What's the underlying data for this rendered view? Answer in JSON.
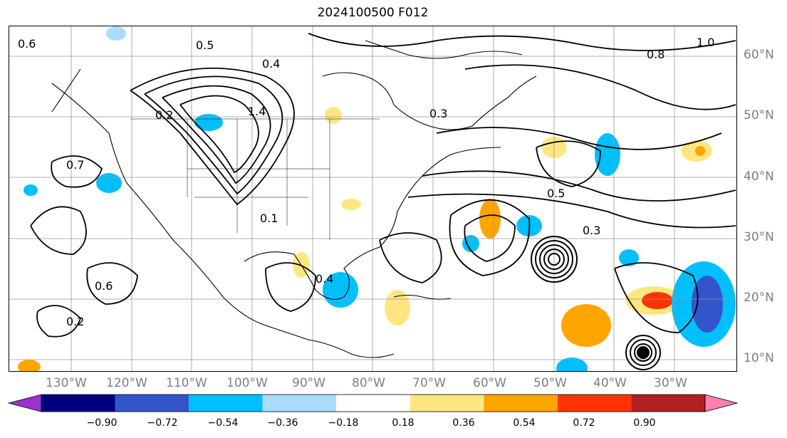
{
  "title": "2024100500 F012",
  "lat_labels": [
    "60°N",
    "50°N",
    "40°N",
    "30°N",
    "20°N",
    "10°N"
  ],
  "lon_labels": [
    "130°W",
    "120°W",
    "110°W",
    "100°W",
    "90°W",
    "80°W",
    "70°W",
    "60°W",
    "50°W",
    "40°W",
    "30°W"
  ],
  "colorbar": {
    "ticks": [
      "−0.90",
      "−0.72",
      "−0.54",
      "−0.36",
      "−0.18",
      "0.18",
      "0.36",
      "0.54",
      "0.72",
      "0.90"
    ],
    "colors": [
      "#9933cc",
      "#000080",
      "#3355cc",
      "#00bfff",
      "#aadcff",
      "#ffffff",
      "#ffe680",
      "#ffa500",
      "#ff3300",
      "#b22222",
      "#ff80b0"
    ]
  },
  "contour_labels": [
    "0.6",
    "0.5",
    "0.4",
    "0.3",
    "0.2",
    "0.7",
    "0.8",
    "1.0",
    "1.4",
    "0.1",
    "0.3",
    "0.5",
    "0.6",
    "0.2",
    "0.4"
  ]
}
